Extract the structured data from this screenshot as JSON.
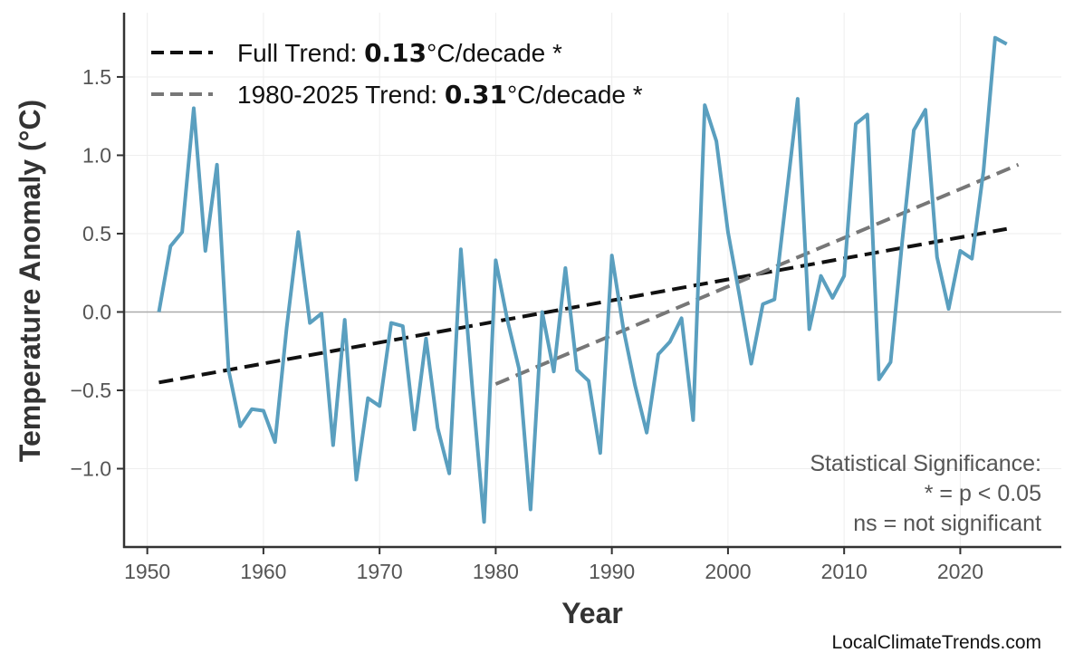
{
  "chart_data": {
    "type": "line",
    "xlabel": "Year",
    "ylabel": "Temperature Anomaly (°C)",
    "xlim": [
      1948,
      2028.7
    ],
    "ylim": [
      -1.5,
      1.91
    ],
    "xticks": [
      1950,
      1960,
      1970,
      1980,
      1990,
      2000,
      2010,
      2020
    ],
    "yticks": [
      -1.0,
      -0.5,
      0.0,
      0.5,
      1.0,
      1.5
    ],
    "ytick_labels": [
      "−1.0",
      "−0.5",
      "0.0",
      "0.5",
      "1.0",
      "1.5"
    ],
    "grid": true,
    "legend_placement": "top-left",
    "series": [
      {
        "color": "#5a9fbf",
        "x": [
          1951,
          1952,
          1953,
          1954,
          1955,
          1956,
          1957,
          1958,
          1959,
          1960,
          1961,
          1962,
          1963,
          1964,
          1965,
          1966,
          1967,
          1968,
          1969,
          1970,
          1971,
          1972,
          1973,
          1974,
          1975,
          1976,
          1977,
          1978,
          1979,
          1980,
          1981,
          1982,
          1983,
          1984,
          1985,
          1986,
          1987,
          1988,
          1989,
          1990,
          1991,
          1992,
          1993,
          1994,
          1995,
          1996,
          1997,
          1998,
          1999,
          2000,
          2001,
          2002,
          2003,
          2004,
          2005,
          2006,
          2007,
          2008,
          2009,
          2010,
          2011,
          2012,
          2013,
          2014,
          2015,
          2016,
          2017,
          2018,
          2019,
          2020,
          2021,
          2022,
          2023,
          2024
        ],
        "y": [
          0.0,
          0.42,
          0.51,
          1.3,
          0.39,
          0.94,
          -0.37,
          -0.73,
          -0.62,
          -0.63,
          -0.83,
          -0.1,
          0.51,
          -0.07,
          -0.01,
          -0.85,
          -0.05,
          -1.07,
          -0.55,
          -0.6,
          -0.07,
          -0.09,
          -0.75,
          -0.17,
          -0.74,
          -1.03,
          0.4,
          -0.5,
          -1.34,
          0.33,
          -0.05,
          -0.36,
          -1.26,
          0.0,
          -0.38,
          0.28,
          -0.37,
          -0.44,
          -0.9,
          0.36,
          -0.11,
          -0.47,
          -0.77,
          -0.27,
          -0.19,
          -0.04,
          -0.69,
          1.32,
          1.09,
          0.51,
          0.1,
          -0.33,
          0.05,
          0.08,
          0.72,
          1.36,
          -0.11,
          0.23,
          0.09,
          0.23,
          1.2,
          1.26,
          -0.43,
          -0.32,
          0.45,
          1.16,
          1.29,
          0.35,
          0.02,
          0.39,
          0.34,
          0.9,
          1.75,
          1.71
        ]
      }
    ],
    "trends": [
      {
        "name_prefix": "Full Trend: ",
        "value": "0.13",
        "suffix": "°C/decade *",
        "x": [
          1951,
          2024
        ],
        "y": [
          -0.45,
          0.53
        ],
        "color": "#111111"
      },
      {
        "name_prefix": "1980-2025 Trend: ",
        "value": "0.31",
        "suffix": "°C/decade *",
        "x": [
          1980,
          2025
        ],
        "y": [
          -0.46,
          0.94
        ],
        "color": "#777777"
      }
    ],
    "annotation": [
      "Statistical Significance:",
      "* = p < 0.05",
      "ns = not significant"
    ],
    "watermark": "LocalClimateTrends.com"
  }
}
